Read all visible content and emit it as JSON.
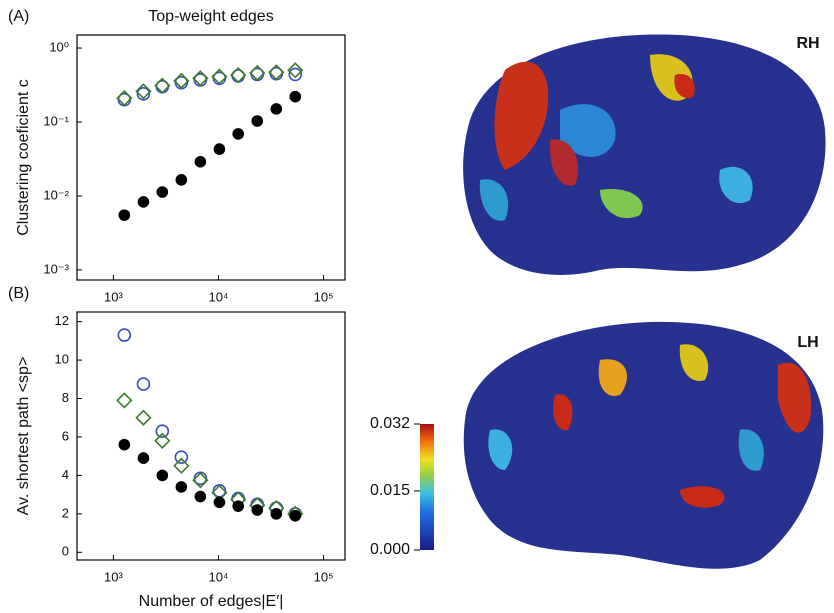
{
  "chart_data": [
    {
      "type": "scatter",
      "panel": "(A)",
      "title": "Top-weight edges",
      "y_label": "Clustering coeficient c",
      "xlog": true,
      "ylog": true,
      "x": [
        1270,
        1930,
        2920,
        4430,
        6720,
        10200,
        15400,
        23400,
        35500,
        53800
      ],
      "series": [
        {
          "color": "#3a4fc0",
          "marker": "circle",
          "filled": false,
          "values": [
            0.2,
            0.24,
            0.3,
            0.34,
            0.37,
            0.39,
            0.42,
            0.44,
            0.45,
            0.44
          ]
        },
        {
          "color": "#3d7a2a",
          "marker": "diamond",
          "filled": false,
          "values": [
            0.21,
            0.26,
            0.31,
            0.36,
            0.39,
            0.41,
            0.43,
            0.46,
            0.47,
            0.5
          ]
        },
        {
          "color": "#000000",
          "marker": "circle",
          "filled": true,
          "values": [
            0.0055,
            0.0083,
            0.0113,
            0.0165,
            0.029,
            0.043,
            0.069,
            0.103,
            0.15,
            0.22
          ]
        }
      ],
      "xlim": [
        450,
        160000
      ],
      "xticks": [
        {
          "value": 1000,
          "label": "10³"
        },
        {
          "value": 10000,
          "label": "10⁴"
        },
        {
          "value": 100000,
          "label": "10⁵"
        }
      ],
      "ylim": [
        0.00073,
        1.5
      ],
      "yticks": [
        {
          "value": 0.001,
          "label": "10⁻³"
        },
        {
          "value": 0.01,
          "label": "10⁻²"
        },
        {
          "value": 0.1,
          "label": "10⁻¹"
        },
        {
          "value": 1,
          "label": "10⁰"
        }
      ]
    },
    {
      "type": "scatter",
      "panel": "(B)",
      "y_label": "Av. shortest path <sp>",
      "x_label": "Number of edges|E′|",
      "xlog": true,
      "ylog": false,
      "x": [
        1270,
        1930,
        2920,
        4430,
        6720,
        10200,
        15400,
        23400,
        35500,
        53800
      ],
      "series": [
        {
          "color": "#3a4fc0",
          "marker": "circle",
          "filled": false,
          "values": [
            11.3,
            8.75,
            6.3,
            4.95,
            3.85,
            3.2,
            2.8,
            2.5,
            2.3,
            2.0
          ]
        },
        {
          "color": "#3d7a2a",
          "marker": "diamond",
          "filled": false,
          "values": [
            7.9,
            7.0,
            5.8,
            4.5,
            3.75,
            3.1,
            2.75,
            2.45,
            2.3,
            2.0
          ]
        },
        {
          "color": "#000000",
          "marker": "circle",
          "filled": true,
          "values": [
            5.6,
            4.9,
            4.0,
            3.4,
            2.9,
            2.6,
            2.4,
            2.2,
            2.0,
            1.9
          ]
        }
      ],
      "xlim": [
        450,
        160000
      ],
      "xticks": [
        {
          "value": 1000,
          "label": "10³"
        },
        {
          "value": 10000,
          "label": "10⁴"
        },
        {
          "value": 100000,
          "label": "10⁵"
        }
      ],
      "ylim": [
        -0.4,
        12.5
      ],
      "yticks": [
        0,
        2,
        4,
        6,
        8,
        10,
        12
      ]
    }
  ],
  "brain_labels": [
    "RH",
    "LH"
  ],
  "colorbar": {
    "lim": [
      0,
      0.032
    ],
    "ticks": [
      {
        "value": 0,
        "label": "0.000"
      },
      {
        "value": 0.015,
        "label": "0.015"
      },
      {
        "value": 0.032,
        "label": "0.032"
      }
    ]
  }
}
